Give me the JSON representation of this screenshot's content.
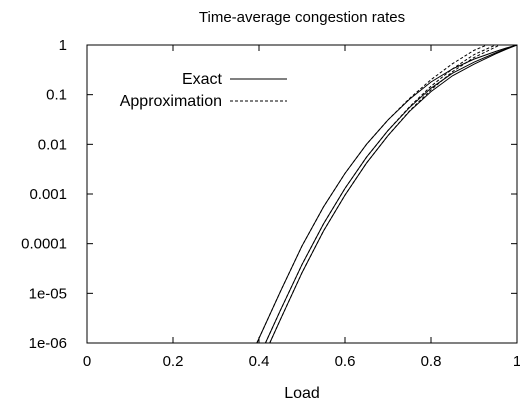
{
  "chart_data": {
    "type": "line",
    "title": "Time-average congestion rates",
    "xlabel": "Load",
    "ylabel": "",
    "xlim": [
      0,
      1
    ],
    "ylim": [
      1e-06,
      1
    ],
    "y_scale": "log",
    "grid": false,
    "legend_position": "top-left",
    "x_ticks": [
      0,
      0.2,
      0.4,
      0.6,
      0.8,
      1
    ],
    "x_tick_labels": [
      "0",
      "0.2",
      "0.4",
      "0.6",
      "0.8",
      "1"
    ],
    "y_ticks": [
      1e-06,
      1e-05,
      0.0001,
      0.001,
      0.01,
      0.1,
      1
    ],
    "y_tick_labels": [
      "1e-06",
      "1e-05",
      "0.0001",
      "0.001",
      "0.01",
      "0.1",
      "1"
    ],
    "series": [
      {
        "name": "Exact",
        "style": "solid",
        "curves": [
          {
            "x": [
              0.395,
              0.45,
              0.5,
              0.55,
              0.6,
              0.65,
              0.7,
              0.75,
              0.8,
              0.85,
              0.9,
              0.95,
              0.975,
              1.0
            ],
            "y": [
              1e-06,
              1.1e-05,
              9e-05,
              0.00055,
              0.0026,
              0.01,
              0.031,
              0.081,
              0.18,
              0.33,
              0.52,
              0.74,
              0.87,
              1.0
            ]
          },
          {
            "x": [
              0.415,
              0.45,
              0.5,
              0.55,
              0.6,
              0.65,
              0.7,
              0.75,
              0.8,
              0.85,
              0.9,
              0.95,
              0.975,
              1.0
            ],
            "y": [
              1e-06,
              4.6e-06,
              3.8e-05,
              0.00025,
              0.0013,
              0.0055,
              0.019,
              0.055,
              0.135,
              0.27,
              0.45,
              0.69,
              0.84,
              1.0
            ]
          },
          {
            "x": [
              0.425,
              0.45,
              0.5,
              0.55,
              0.6,
              0.65,
              0.7,
              0.75,
              0.8,
              0.85,
              0.9,
              0.95,
              0.975,
              1.0
            ],
            "y": [
              1e-06,
              3e-06,
              2.6e-05,
              0.00018,
              0.00095,
              0.0042,
              0.015,
              0.046,
              0.115,
              0.24,
              0.41,
              0.66,
              0.82,
              1.0
            ]
          }
        ]
      },
      {
        "name": "Approximation",
        "style": "dashed",
        "curves": [
          {
            "x": [
              0.395,
              0.45,
              0.5,
              0.55,
              0.6,
              0.65,
              0.7,
              0.75,
              0.8,
              0.85,
              0.9,
              0.93
            ],
            "y": [
              1e-06,
              1.1e-05,
              9e-05,
              0.00055,
              0.0026,
              0.01,
              0.031,
              0.084,
              0.2,
              0.42,
              0.78,
              1.0
            ]
          },
          {
            "x": [
              0.415,
              0.45,
              0.5,
              0.55,
              0.6,
              0.65,
              0.7,
              0.75,
              0.8,
              0.85,
              0.9,
              0.95
            ],
            "y": [
              1e-06,
              4.6e-06,
              3.8e-05,
              0.00025,
              0.0013,
              0.0055,
              0.019,
              0.057,
              0.148,
              0.33,
              0.64,
              1.0
            ]
          },
          {
            "x": [
              0.425,
              0.45,
              0.5,
              0.55,
              0.6,
              0.65,
              0.7,
              0.75,
              0.8,
              0.85,
              0.9,
              0.96
            ],
            "y": [
              1e-06,
              3e-06,
              2.6e-05,
              0.00018,
              0.00095,
              0.0042,
              0.015,
              0.047,
              0.125,
              0.29,
              0.56,
              1.0
            ]
          }
        ]
      }
    ]
  }
}
